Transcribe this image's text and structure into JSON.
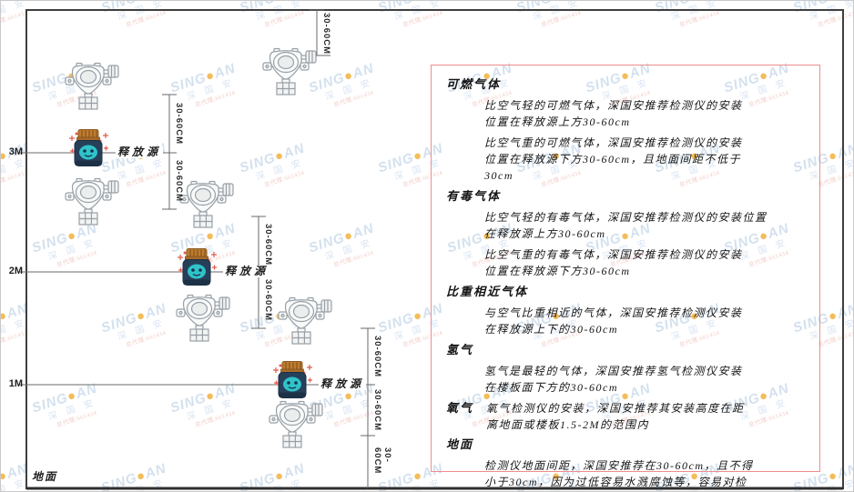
{
  "watermark": {
    "brand": "SING",
    "brand_suffix": "AN",
    "dot": "●",
    "brand_cn": "深 国 安",
    "agent_text": "总代理:661434"
  },
  "diagram": {
    "ground_label": "地面",
    "height_labels": [
      "3M",
      "2M",
      "1M"
    ],
    "release_source_label": "释放源",
    "dimension_label": "30-60CM"
  },
  "panel": {
    "sections": [
      {
        "heading": "可燃气体",
        "inline": false,
        "paragraphs": [
          "比空气轻的可燃气体，深国安推荐检测仪的安装\n位置在释放源上方30-60cm",
          "比空气重的可燃气体，深国安推荐检测仪的安装\n位置在释放源下方30-60cm，且地面间距不低于\n30cm"
        ]
      },
      {
        "heading": "有毒气体",
        "inline": false,
        "paragraphs": [
          "比空气轻的有毒气体，深国安推荐检测仪的安装位置\n在释放源上方30-60cm",
          "比空气重的有毒气体，深国安推荐检测仪的安装\n位置在释放源下方30-60cm"
        ]
      },
      {
        "heading": "比重相近气体",
        "inline": false,
        "paragraphs": [
          "与空气比重相近的气体，深国安推荐检测仪安装\n在释放源上下的30-60cm"
        ]
      },
      {
        "heading": "氢气",
        "inline": false,
        "paragraphs": [
          "氢气是最轻的气体，深国安推荐氢气检测仪安装\n在楼板面下方的30-60cm"
        ]
      },
      {
        "heading": "氧气",
        "inline": true,
        "paragraphs": [
          "氧气检测仪的安装，深国安推荐其安装高度在距\n离地面或楼板1.5-2M的范围内"
        ]
      },
      {
        "heading": "地面",
        "inline": false,
        "paragraphs": [
          "检测仪地面间距，深国安推荐在30-60cm，且不得\n小于30cm，因为过低容易水溅腐蚀等，容易对检\n测仪造成伤害"
        ]
      }
    ]
  },
  "colors": {
    "panel_border": "#ef8d8d",
    "room_line": "#3f3f3f",
    "dimension_line": "#6a6a6a",
    "watermark_blue": "#cfdeed",
    "watermark_dot": "#f2b64a",
    "source_body": "#27405a",
    "source_lid": "#c07c2f",
    "source_face": "#2fc3c9",
    "sparkle_red": "#e05b4d",
    "detector_stroke": "#98a0a6"
  }
}
